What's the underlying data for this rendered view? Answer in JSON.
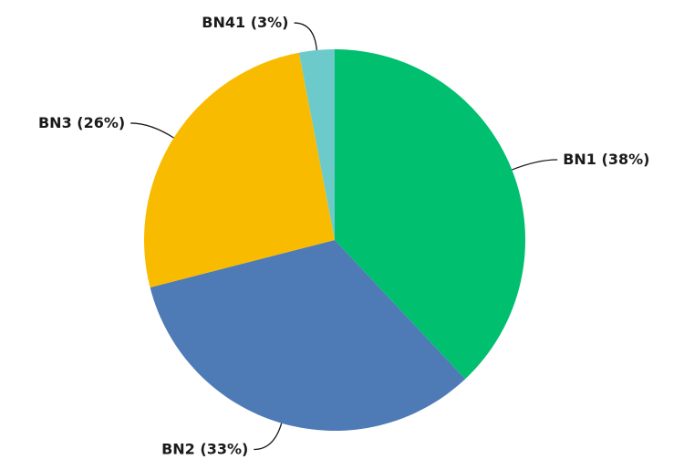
{
  "chart_data": {
    "type": "pie",
    "categories": [
      "BN1",
      "BN2",
      "BN3",
      "BN41"
    ],
    "values": [
      38,
      33,
      26,
      3
    ],
    "value_labels": [
      "(38%)",
      "(33%)",
      "(26%)",
      "(3%)"
    ],
    "colors": [
      "#00c06f",
      "#4e7ab5",
      "#f9bb00",
      "#6ccacb"
    ]
  }
}
